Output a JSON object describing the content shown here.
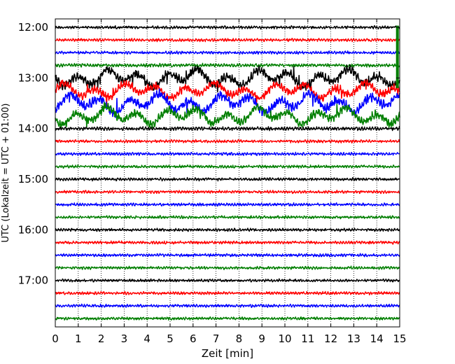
{
  "chart_data": {
    "type": "line",
    "title": "",
    "xlabel": "Zeit  [min]",
    "ylabel": "UTC (Lokalzeit = UTC + 01:00)",
    "xlim": [
      0,
      15
    ],
    "ylim_time": [
      "11:50",
      "17:55"
    ],
    "x_ticks": [
      "0",
      "1",
      "2",
      "3",
      "4",
      "5",
      "6",
      "7",
      "8",
      "9",
      "10",
      "11",
      "12",
      "13",
      "14",
      "15"
    ],
    "y_ticks": [
      "12:00",
      "13:00",
      "14:00",
      "15:00",
      "16:00",
      "17:00"
    ],
    "grid": "vertical dotted at each minute",
    "trace_interval_minutes": 15,
    "color_cycle": [
      "#000000",
      "#ff0000",
      "#0000ff",
      "#007f00"
    ],
    "traces": [
      {
        "start": "12:00",
        "color": "#000000",
        "activity": 1.0
      },
      {
        "start": "12:15",
        "color": "#ff0000",
        "activity": 1.0
      },
      {
        "start": "12:30",
        "color": "#0000ff",
        "activity": 1.0
      },
      {
        "start": "12:45",
        "color": "#007f00",
        "activity": 1.2
      },
      {
        "start": "13:00",
        "color": "#000000",
        "activity": 3.5
      },
      {
        "start": "13:15",
        "color": "#ff0000",
        "activity": 3.0
      },
      {
        "start": "13:30",
        "color": "#0000ff",
        "activity": 3.6
      },
      {
        "start": "13:45",
        "color": "#007f00",
        "activity": 3.2
      },
      {
        "start": "14:00",
        "color": "#000000",
        "activity": 1.2
      },
      {
        "start": "14:15",
        "color": "#ff0000",
        "activity": 1.0
      },
      {
        "start": "14:30",
        "color": "#0000ff",
        "activity": 1.0
      },
      {
        "start": "14:45",
        "color": "#007f00",
        "activity": 1.0
      },
      {
        "start": "15:00",
        "color": "#000000",
        "activity": 1.0
      },
      {
        "start": "15:15",
        "color": "#ff0000",
        "activity": 1.0
      },
      {
        "start": "15:30",
        "color": "#0000ff",
        "activity": 1.0
      },
      {
        "start": "15:45",
        "color": "#007f00",
        "activity": 1.0
      },
      {
        "start": "16:00",
        "color": "#000000",
        "activity": 1.0
      },
      {
        "start": "16:15",
        "color": "#ff0000",
        "activity": 1.0
      },
      {
        "start": "16:30",
        "color": "#0000ff",
        "activity": 1.0
      },
      {
        "start": "16:45",
        "color": "#007f00",
        "activity": 1.0
      },
      {
        "start": "17:00",
        "color": "#000000",
        "activity": 1.0
      },
      {
        "start": "17:15",
        "color": "#ff0000",
        "activity": 1.0
      },
      {
        "start": "17:30",
        "color": "#0000ff",
        "activity": 1.0
      },
      {
        "start": "17:45",
        "color": "#007f00",
        "activity": 1.0
      }
    ]
  }
}
